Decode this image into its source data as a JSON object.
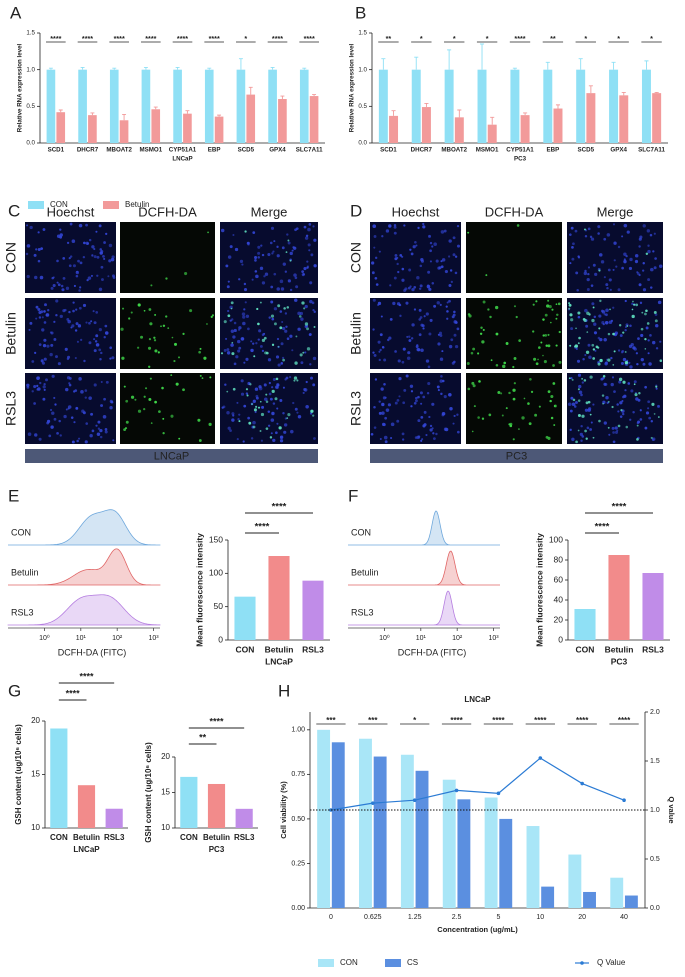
{
  "panel_labels": [
    "A",
    "B",
    "C",
    "D",
    "E",
    "F",
    "G",
    "H"
  ],
  "micrographs": [
    {
      "columns": [
        "Hoechst",
        "DCFH-DA",
        "Merge"
      ],
      "rows": [
        "CON",
        "Betulin",
        "RSL3"
      ],
      "cell_line": "LNCaP"
    },
    {
      "columns": [
        "Hoechst",
        "DCFH-DA",
        "Merge"
      ],
      "rows": [
        "CON",
        "Betulin",
        "RSL3"
      ],
      "cell_line": "PC3"
    }
  ],
  "chart_data": [
    {
      "type": "bar",
      "categories": [
        "SCD1",
        "DHCR7",
        "MBOAT2",
        "MSMO1",
        "CYP51A1",
        "EBP",
        "SCD5",
        "GPX4",
        "SLC7A11"
      ],
      "xlabel": "LNCaP",
      "ylabel": "Relative RNA expression level",
      "ylim": [
        0,
        1.5
      ],
      "yticks": [
        {
          "value": 0,
          "label": "0.0"
        },
        {
          "value": 0.5,
          "label": "0.5"
        },
        {
          "value": 1,
          "label": "1.0"
        },
        {
          "value": 1.5,
          "label": "1.5"
        }
      ],
      "series": [
        {
          "name": "CON",
          "color": "#8fe0f5",
          "values": [
            1,
            1,
            1,
            1,
            1,
            1,
            1,
            1,
            1
          ],
          "errors": [
            0.02,
            0.03,
            0.02,
            0.03,
            0.03,
            0.02,
            0.15,
            0.03,
            0.02
          ]
        },
        {
          "name": "Betulin",
          "color": "#f29a9a",
          "values": [
            0.42,
            0.38,
            0.31,
            0.46,
            0.4,
            0.36,
            0.66,
            0.6,
            0.64
          ],
          "errors": [
            0.03,
            0.03,
            0.08,
            0.03,
            0.04,
            0.02,
            0.1,
            0.04,
            0.02
          ]
        }
      ],
      "significance": [
        "****",
        "****",
        "****",
        "****",
        "****",
        "****",
        "*",
        "****",
        "****"
      ]
    },
    {
      "type": "bar",
      "categories": [
        "SCD1",
        "DHCR7",
        "MBOAT2",
        "MSMO1",
        "CYP51A1",
        "EBP",
        "SCD5",
        "GPX4",
        "SLC7A11"
      ],
      "xlabel": "PC3",
      "ylabel": "Relative RNA expression level",
      "ylim": [
        0,
        1.5
      ],
      "yticks": [
        {
          "value": 0,
          "label": "0.0"
        },
        {
          "value": 0.5,
          "label": "0.5"
        },
        {
          "value": 1,
          "label": "1.0"
        },
        {
          "value": 1.5,
          "label": "1.5"
        }
      ],
      "series": [
        {
          "color": "#8fe0f5",
          "values": [
            1,
            1,
            1,
            1,
            1,
            1,
            1,
            1,
            1
          ],
          "errors": [
            0.15,
            0.17,
            0.27,
            0.35,
            0.02,
            0.1,
            0.15,
            0.1,
            0.12
          ]
        },
        {
          "color": "#f29a9a",
          "values": [
            0.37,
            0.49,
            0.35,
            0.25,
            0.38,
            0.47,
            0.68,
            0.65,
            0.68
          ],
          "errors": [
            0.07,
            0.05,
            0.1,
            0.1,
            0.03,
            0.05,
            0.1,
            0.04,
            0.01
          ]
        }
      ],
      "significance": [
        "**",
        "*",
        "*",
        "*",
        "****",
        "**",
        "*",
        "*",
        "*"
      ]
    },
    {
      "type": "density",
      "xlabel": "DCFH-DA (FITC)",
      "xscale": "log",
      "xlim": [
        0.1,
        1500
      ],
      "xticks": [
        {
          "value": 1,
          "label": "10⁰"
        },
        {
          "value": 10,
          "label": "10¹"
        },
        {
          "value": 100,
          "label": "10²"
        },
        {
          "value": 1000,
          "label": "10³"
        }
      ],
      "groups": [
        {
          "name": "CON",
          "color": "#6fa8dc"
        },
        {
          "name": "Betulin",
          "color": "#e06666"
        },
        {
          "name": "RSL3",
          "color": "#b57ee0"
        }
      ]
    },
    {
      "type": "bar",
      "categories": [
        "CON",
        "Betulin",
        "RSL3"
      ],
      "values": [
        65,
        126,
        89
      ],
      "colors": [
        "#8fe0f5",
        "#f28b8b",
        "#c08ce8"
      ],
      "xlabel": "LNCaP",
      "ylabel": "Mean fluorescence intensity",
      "ylim": [
        0,
        150
      ],
      "yticks": [
        0,
        50,
        100,
        150
      ],
      "significance": [
        null,
        "****",
        "****"
      ]
    },
    {
      "type": "density",
      "xlabel": "DCFH-DA (FITC)",
      "xscale": "log",
      "xlim": [
        0.1,
        1500
      ],
      "xticks": [
        {
          "value": 1,
          "label": "10⁰"
        },
        {
          "value": 10,
          "label": "10¹"
        },
        {
          "value": 100,
          "label": "10²"
        },
        {
          "value": 1000,
          "label": "10³"
        }
      ],
      "groups": [
        {
          "name": "CON",
          "color": "#6fa8dc"
        },
        {
          "name": "Betulin",
          "color": "#e06666"
        },
        {
          "name": "RSL3",
          "color": "#b57ee0"
        }
      ]
    },
    {
      "type": "bar",
      "categories": [
        "CON",
        "Betulin",
        "RSL3"
      ],
      "values": [
        31,
        85,
        67
      ],
      "colors": [
        "#8fe0f5",
        "#f28b8b",
        "#c08ce8"
      ],
      "xlabel": "PC3",
      "ylabel": "Mean fluorescence intensity",
      "ylim": [
        0,
        100
      ],
      "yticks": [
        0,
        20,
        40,
        60,
        80,
        100
      ],
      "significance": [
        null,
        "****",
        "****"
      ]
    },
    {
      "type": "bar",
      "categories": [
        "CON",
        "Betulin",
        "RSL3"
      ],
      "values": [
        19.3,
        14.0,
        11.8
      ],
      "colors": [
        "#8fe0f5",
        "#f28b8b",
        "#c08ce8"
      ],
      "xlabel": "LNCaP",
      "ylabel": "GSH content (ug/10⁶ cells)",
      "ylim": [
        10,
        20
      ],
      "yticks": [
        10,
        15,
        20
      ],
      "significance": [
        null,
        "****",
        "****"
      ]
    },
    {
      "type": "bar",
      "categories": [
        "CON",
        "Betulin",
        "RSL3"
      ],
      "values": [
        17.2,
        16.2,
        12.7
      ],
      "colors": [
        "#8fe0f5",
        "#f28b8b",
        "#c08ce8"
      ],
      "xlabel": "PC3",
      "ylabel": "GSH content (ug/10⁶ cells)",
      "ylim": [
        10,
        20
      ],
      "yticks": [
        10,
        15,
        20
      ],
      "significance": [
        null,
        "**",
        "****"
      ]
    },
    {
      "type": "combo",
      "title": "LNCaP",
      "categories": [
        "0",
        "0.625",
        "1.25",
        "2.5",
        "5",
        "10",
        "20",
        "40"
      ],
      "xlabel": "Concentration (ug/mL)",
      "ylabel": "Cell viability (%)",
      "y2label": "Q value",
      "ylim": [
        0,
        1.1
      ],
      "yticks": [
        {
          "value": 0,
          "label": "0.00"
        },
        {
          "value": 0.25,
          "label": "0.25"
        },
        {
          "value": 0.5,
          "label": "0.50"
        },
        {
          "value": 0.75,
          "label": "0.75"
        },
        {
          "value": 1,
          "label": "1.00"
        }
      ],
      "y2lim": [
        0,
        2
      ],
      "y2ticks": [
        {
          "value": 0,
          "label": "0.0"
        },
        {
          "value": 0.5,
          "label": "0.5"
        },
        {
          "value": 1,
          "label": "1.0"
        },
        {
          "value": 1.5,
          "label": "1.5"
        },
        {
          "value": 2,
          "label": "2.0"
        }
      ],
      "reference_line": {
        "axis": "y2",
        "value": 1
      },
      "series": [
        {
          "name": "CON",
          "color": "#a9e6f7",
          "values": [
            1.0,
            0.95,
            0.86,
            0.72,
            0.62,
            0.46,
            0.3,
            0.17
          ]
        },
        {
          "name": "CS",
          "color": "#5b8fe0",
          "values": [
            0.93,
            0.85,
            0.77,
            0.61,
            0.5,
            0.12,
            0.09,
            0.07
          ]
        },
        {
          "name": "Q Value",
          "color": "#2b7bd4",
          "axis": "y2",
          "values": [
            1.0,
            1.07,
            1.1,
            1.2,
            1.17,
            1.53,
            1.27,
            1.1
          ]
        }
      ],
      "significance": [
        "***",
        "***",
        "*",
        "****",
        "****",
        "****",
        "****",
        "****"
      ]
    }
  ]
}
